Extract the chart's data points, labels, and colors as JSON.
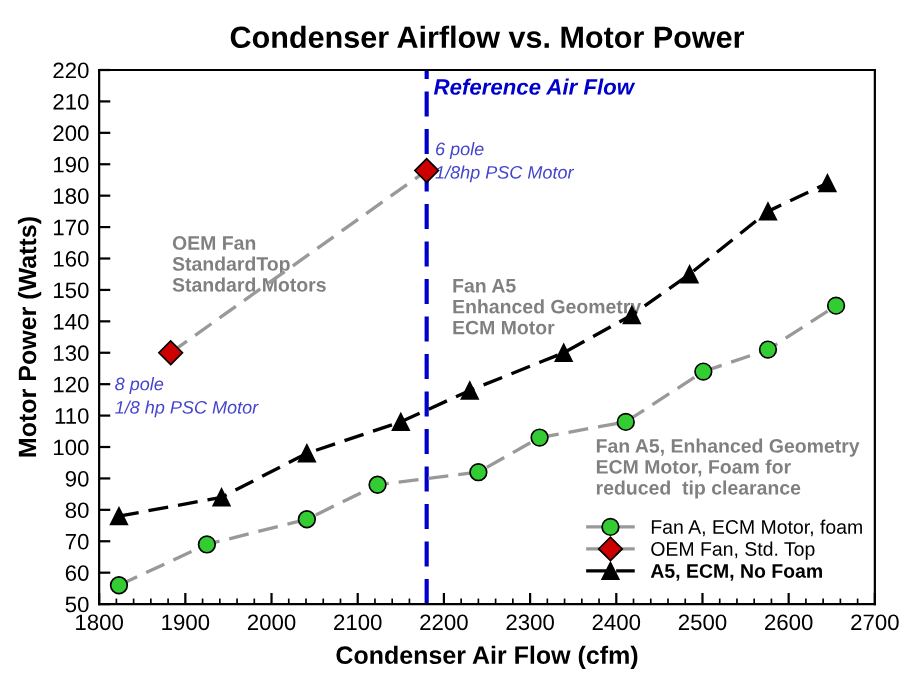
{
  "chart_data": {
    "type": "line",
    "title": "Condenser Airflow vs. Motor Power",
    "xlabel": "Condenser Air Flow (cfm)",
    "ylabel": "Motor Power (Watts)",
    "xlim": [
      1800,
      2700
    ],
    "xticks": [
      1800,
      1900,
      2000,
      2100,
      2200,
      2300,
      2400,
      2500,
      2600,
      2700
    ],
    "ylim": [
      50,
      220
    ],
    "yticks": [
      50,
      60,
      70,
      80,
      90,
      100,
      110,
      120,
      130,
      140,
      150,
      160,
      170,
      180,
      190,
      200,
      210,
      220
    ],
    "grid": false,
    "legend": "bottom right",
    "series": [
      {
        "name": "Fan A, ECM Motor, foam",
        "color": "#33cc33",
        "marker": "circle",
        "line_style": "dashed",
        "x": [
          1823,
          1925,
          2041,
          2123,
          2240,
          2311,
          2411,
          2501,
          2576,
          2655
        ],
        "values": [
          56,
          69,
          77,
          88,
          92,
          103,
          108,
          124,
          131,
          145
        ]
      },
      {
        "name": "OEM Fan, Std. Top",
        "color": "#cc0000",
        "marker": "diamond",
        "line_style": "dashed",
        "x": [
          1883,
          2180
        ],
        "values": [
          130,
          188
        ]
      },
      {
        "name": "A5, ECM, No Foam",
        "color": "#000000",
        "marker": "triangle",
        "line_style": "dashed",
        "x": [
          1823,
          1942,
          2041,
          2150,
          2230,
          2339,
          2418,
          2485,
          2576,
          2645
        ],
        "values": [
          78,
          84,
          98,
          108,
          118,
          130,
          142,
          155,
          175,
          184
        ]
      }
    ],
    "ref_lines": [
      {
        "axis": "x",
        "value": 2180,
        "label": "Reference Air Flow",
        "color": "#0000cc",
        "line_style": "dashed"
      }
    ],
    "annotations": [
      "OEM Fan\nStandardTop\nStandard Motors",
      "8 pole\n1/8 hp PSC Motor",
      "6 pole\n1/8hp PSC Motor",
      "Fan A5\nEnhanced Geometry\nECM Motor",
      "Fan A5, Enhanced Geometry\nECM Motor, Foam for\nreduced  tip clearance"
    ]
  }
}
